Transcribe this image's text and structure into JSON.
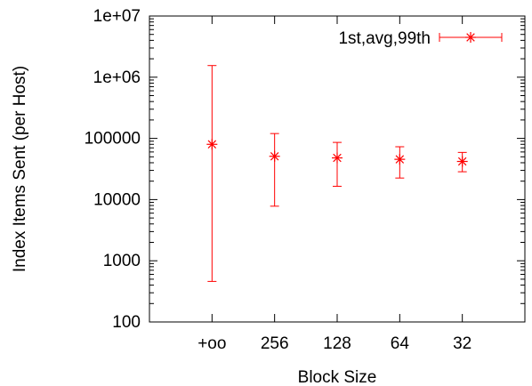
{
  "chart_data": {
    "type": "errorbar",
    "xlabel": "Block Size",
    "ylabel": "Index Items Sent (per Host)",
    "y_scale": "log",
    "ylim": [
      100,
      10000000
    ],
    "y_ticks": [
      100,
      1000,
      10000,
      100000,
      1000000,
      10000000
    ],
    "y_tick_labels": [
      "100",
      "1000",
      "10000",
      "100000",
      "1e+06",
      "1e+07"
    ],
    "categories": [
      "+oo",
      "256",
      "128",
      "64",
      "32"
    ],
    "legend": {
      "label": "1st,avg,99th",
      "placement": "top-right"
    },
    "series": [
      {
        "name": "1st,avg,99th",
        "color": "#ff0000",
        "low": [
          460,
          7800,
          16500,
          22500,
          28500
        ],
        "avg": [
          80000,
          51000,
          48000,
          45500,
          42000
        ],
        "high": [
          1550000,
          120000,
          86000,
          73000,
          59000
        ]
      }
    ]
  }
}
